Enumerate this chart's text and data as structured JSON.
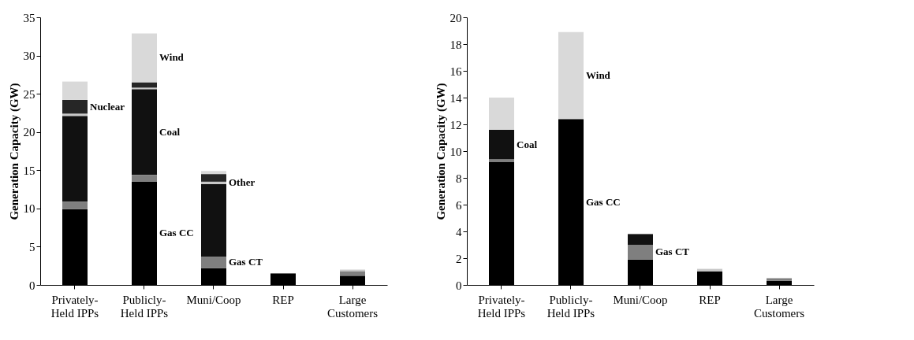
{
  "chart_data": [
    {
      "type": "bar",
      "stacked": true,
      "ylabel": "Generation Capacity (GW)",
      "categories": [
        "Privately- Held IPPs",
        "Publicly- Held IPPs",
        "Muni/Coop",
        "REP",
        "Large Customers"
      ],
      "ylim": [
        0,
        35
      ],
      "yticks": [
        0,
        5,
        10,
        15,
        20,
        25,
        30,
        35
      ],
      "grid": false,
      "legend": false,
      "series": [
        {
          "name": "Gas CC",
          "color": "#000000",
          "values": [
            9.9,
            13.5,
            2.2,
            1.5,
            1.2
          ]
        },
        {
          "name": "Gas CT",
          "color": "#7f7f7f",
          "values": [
            1.0,
            0.9,
            1.5,
            0,
            0.6
          ]
        },
        {
          "name": "Coal",
          "color": "#111111",
          "values": [
            11.2,
            11.2,
            9.5,
            0,
            0
          ]
        },
        {
          "name": "Other",
          "color": "#c8c8c8",
          "values": [
            0.3,
            0.2,
            0.3,
            0,
            0.2
          ]
        },
        {
          "name": "Nuclear",
          "color": "#262626",
          "values": [
            1.8,
            0.7,
            1.0,
            0,
            0
          ]
        },
        {
          "name": "Wind",
          "color": "#d9d9d9",
          "values": [
            2.4,
            6.4,
            0.4,
            0,
            0
          ]
        }
      ]
    },
    {
      "type": "bar",
      "stacked": true,
      "ylabel": "Generation Capacity (GW)",
      "categories": [
        "Privately- Held IPPs",
        "Publicly- Held IPPs",
        "Muni/Coop",
        "REP",
        "Large Customers"
      ],
      "ylim": [
        0,
        20
      ],
      "yticks": [
        0,
        2,
        4,
        6,
        8,
        10,
        12,
        14,
        16,
        18,
        20
      ],
      "grid": false,
      "legend": false,
      "series": [
        {
          "name": "Gas CC",
          "color": "#000000",
          "values": [
            9.2,
            12.4,
            1.9,
            1.0,
            0.3
          ]
        },
        {
          "name": "Gas CT",
          "color": "#7f7f7f",
          "values": [
            0.2,
            0,
            1.1,
            0,
            0.2
          ]
        },
        {
          "name": "Coal",
          "color": "#111111",
          "values": [
            2.2,
            0,
            0.8,
            0,
            0
          ]
        },
        {
          "color": "#c8c8c8",
          "values": [
            0,
            0,
            0,
            0.2,
            0
          ]
        },
        {
          "name": "Wind",
          "color": "#d9d9d9",
          "values": [
            2.4,
            6.5,
            0,
            0,
            0
          ]
        }
      ]
    }
  ]
}
